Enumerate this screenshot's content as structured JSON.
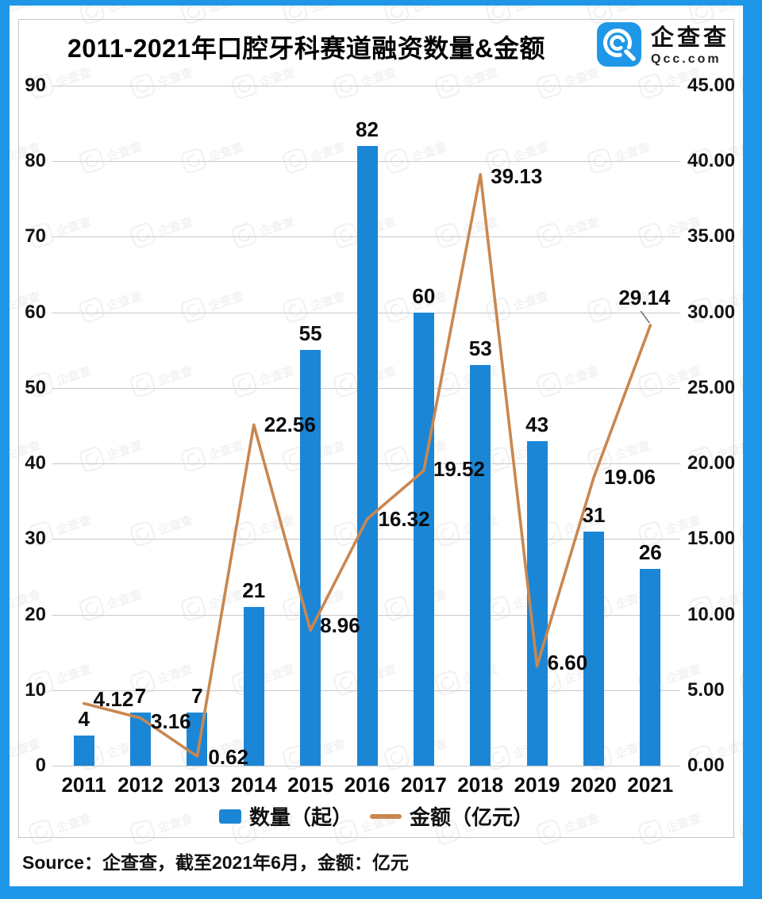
{
  "header": {
    "title": "2011-2021年口腔牙科赛道融资数量&金额",
    "logo": {
      "name": "企查查",
      "domain": "Qcc.com"
    }
  },
  "chart_data": {
    "type": "bar+line",
    "title": "2011-2021年口腔牙科赛道融资数量&金额",
    "categories": [
      "2011",
      "2012",
      "2013",
      "2014",
      "2015",
      "2016",
      "2017",
      "2018",
      "2019",
      "2020",
      "2021"
    ],
    "series": [
      {
        "name": "数量（起）",
        "type": "bar",
        "axis": "left",
        "color": "#1b86d6",
        "values": [
          4,
          7,
          7,
          21,
          55,
          82,
          60,
          53,
          43,
          31,
          26
        ]
      },
      {
        "name": "金额（亿元）",
        "type": "line",
        "axis": "right",
        "color": "#c98750",
        "values": [
          4.12,
          3.16,
          0.62,
          22.56,
          8.96,
          16.32,
          19.52,
          39.13,
          6.6,
          19.06,
          29.14
        ],
        "value_labels": [
          "4.12",
          "3.16",
          "0.62",
          "22.56",
          "8.96",
          "16.32",
          "19.52",
          "39.13",
          "6.60",
          "19.06",
          "29.14"
        ]
      }
    ],
    "left_axis": {
      "min": 0,
      "max": 90,
      "step": 10,
      "tick_labels": [
        "90",
        "80",
        "70",
        "60",
        "50",
        "40",
        "30",
        "20",
        "10",
        "0"
      ]
    },
    "right_axis": {
      "min": 0,
      "max": 45,
      "step": 5,
      "tick_labels": [
        "45.00",
        "40.00",
        "35.00",
        "30.00",
        "25.00",
        "20.00",
        "15.00",
        "10.00",
        "5.00",
        "0.00"
      ]
    },
    "grid": true,
    "legend_position": "bottom"
  },
  "legend": {
    "items": [
      {
        "label": "数量（起）",
        "marker": "bar-swatch",
        "color": "#1b86d6"
      },
      {
        "label": "金额（亿元）",
        "marker": "line-dash",
        "color": "#c98750"
      }
    ]
  },
  "footer": {
    "source": "Source：企查查，截至2021年6月，金额：亿元"
  },
  "watermark": {
    "text": "企查查"
  },
  "colors": {
    "frame": "#1e97e8",
    "bar": "#1b86d6",
    "line": "#c98750",
    "grid": "#c9c9c9",
    "panel_border": "#c6c6c6",
    "text": "#0c0c0c"
  }
}
